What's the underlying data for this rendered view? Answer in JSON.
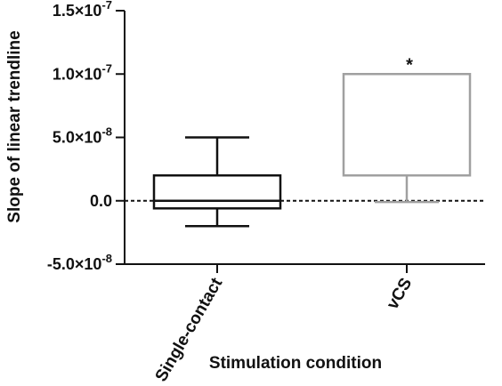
{
  "chart_data": {
    "type": "boxplot",
    "title": "",
    "xlabel": "Stimulation condition",
    "ylabel": "Slope of  linear trendline",
    "ylim": [
      -5e-08,
      1.5e-07
    ],
    "grid": false,
    "reference_line": {
      "y": 0,
      "style": "dashed"
    },
    "yticks": [
      {
        "value": 1.5e-07,
        "label": "1.5×10",
        "exp": "-7"
      },
      {
        "value": 1e-07,
        "label": "1.0×10",
        "exp": "-7"
      },
      {
        "value": 5e-08,
        "label": "5.0×10",
        "exp": "-8"
      },
      {
        "value": 0,
        "label": "0.0",
        "exp": ""
      },
      {
        "value": -5e-08,
        "label": "-5.0×10",
        "exp": "-8"
      }
    ],
    "categories": [
      "Single-contact",
      "vCS"
    ],
    "boxes": [
      {
        "category": "Single-contact",
        "min": -2e-08,
        "q1": -6e-09,
        "median": 0,
        "q3": 2e-08,
        "max": 5e-08,
        "color": "#111111",
        "annotation": ""
      },
      {
        "category": "vCS",
        "min": -1e-09,
        "q1": 2e-08,
        "median": 1e-07,
        "q3": 1e-07,
        "max": 1e-07,
        "color": "#a0a0a0",
        "annotation": "*"
      }
    ]
  }
}
